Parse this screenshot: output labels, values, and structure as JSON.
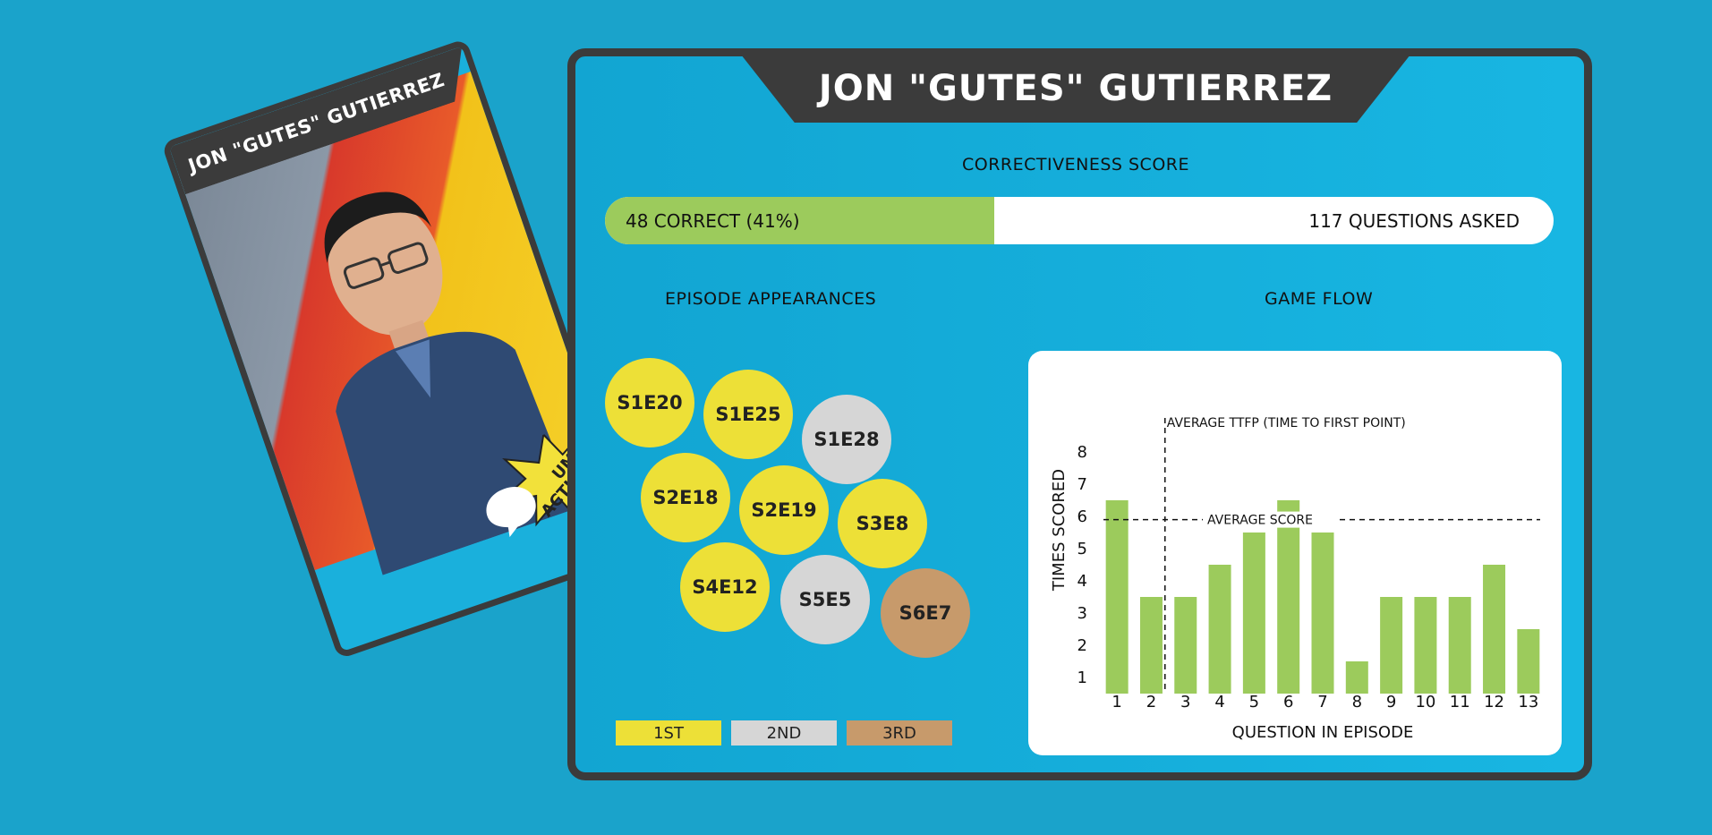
{
  "card": {
    "name": "JON \"GUTES\" GUTIERREZ",
    "badge": "UM, ACTUALLY..."
  },
  "panel": {
    "title": "JON \"GUTES\" GUTIERREZ",
    "correctiveness_label": "CORRECTIVENESS SCORE",
    "correct_text": "48 CORRECT (41%)",
    "asked_text": "117 QUESTIONS ASKED",
    "correct_fraction": 0.41,
    "episodes_label": "EPISODE APPEARANCES",
    "gameflow_label": "GAME FLOW"
  },
  "episodes": [
    {
      "label": "S1E20",
      "place": "1st"
    },
    {
      "label": "S1E25",
      "place": "1st"
    },
    {
      "label": "S1E28",
      "place": "2nd"
    },
    {
      "label": "S2E18",
      "place": "1st"
    },
    {
      "label": "S2E19",
      "place": "1st"
    },
    {
      "label": "S3E8",
      "place": "1st"
    },
    {
      "label": "S4E12",
      "place": "1st"
    },
    {
      "label": "S5E5",
      "place": "2nd"
    },
    {
      "label": "S6E7",
      "place": "3rd"
    }
  ],
  "legend": [
    {
      "label": "1ST",
      "color": "#ede037"
    },
    {
      "label": "2ND",
      "color": "#d6d6d6"
    },
    {
      "label": "3RD",
      "color": "#c79a6b"
    }
  ],
  "colors": {
    "first": "#ede037",
    "second": "#d6d6d6",
    "third": "#c79a6b",
    "bar": "#9ccb5c",
    "dark": "#3b3b3b",
    "background": "#1aa3cb"
  },
  "chart_data": {
    "type": "bar",
    "categories": [
      "1",
      "2",
      "3",
      "4",
      "5",
      "6",
      "7",
      "8",
      "9",
      "10",
      "11",
      "12",
      "13"
    ],
    "values": [
      6,
      3,
      3,
      4,
      5,
      6,
      5,
      1,
      3,
      3,
      3,
      4,
      2
    ],
    "xlabel": "QUESTION IN EPISODE",
    "ylabel": "TIMES SCORED",
    "yticks": [
      "1",
      "2",
      "3",
      "4",
      "5",
      "6",
      "7",
      "8"
    ],
    "ylim": [
      0.5,
      8
    ],
    "average_score": 5.4,
    "average_score_label": "AVERAGE SCORE",
    "average_ttfp": 2.4,
    "average_ttfp_label": "AVERAGE TTFP (TIME TO FIRST POINT)",
    "grid": false
  }
}
